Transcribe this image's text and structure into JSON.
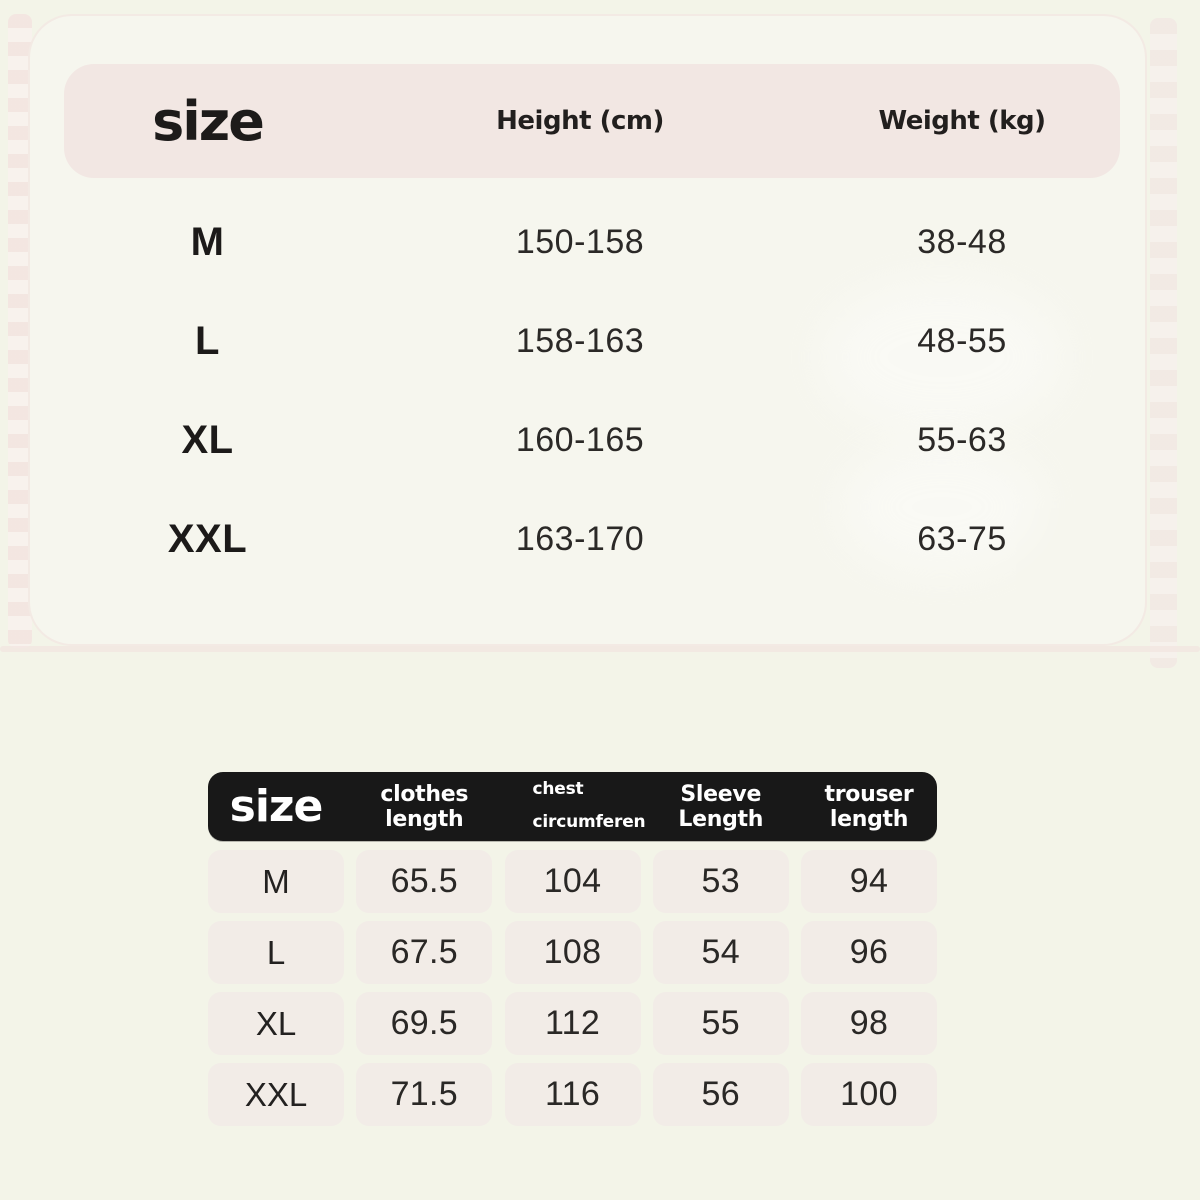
{
  "chart_data": [
    {
      "type": "table",
      "title": "size",
      "columns": [
        "size",
        "Height (cm)",
        "Weight (kg)"
      ],
      "rows": [
        [
          "M",
          "150-158",
          "38-48"
        ],
        [
          "L",
          "158-163",
          "48-55"
        ],
        [
          "XL",
          "160-165",
          "55-63"
        ],
        [
          "XXL",
          "163-170",
          "63-75"
        ]
      ]
    },
    {
      "type": "table",
      "title": "size",
      "columns": [
        "size",
        "clothes length",
        "chest circumferen",
        "Sleeve Length",
        "trouser length"
      ],
      "rows": [
        [
          "M",
          "65.5",
          "104",
          "53",
          "94"
        ],
        [
          "L",
          "67.5",
          "108",
          "54",
          "96"
        ],
        [
          "XL",
          "69.5",
          "112",
          "55",
          "98"
        ],
        [
          "XXL",
          "71.5",
          "116",
          "56",
          "100"
        ]
      ]
    }
  ],
  "size_fit_table": {
    "header": {
      "size": "size",
      "height": "Height (cm)",
      "weight": "Weight (kg)"
    },
    "rows": [
      {
        "size": "M",
        "height": "150-158",
        "weight": "38-48"
      },
      {
        "size": "L",
        "height": "158-163",
        "weight": "48-55"
      },
      {
        "size": "XL",
        "height": "160-165",
        "weight": "55-63"
      },
      {
        "size": "XXL",
        "height": "163-170",
        "weight": "63-75"
      }
    ]
  },
  "measurements_table": {
    "header": {
      "size": "size",
      "clothes_length": [
        "clothes",
        "length"
      ],
      "chest_circumference": [
        "chest",
        "circumferen"
      ],
      "sleeve_length": [
        "Sleeve",
        "Length"
      ],
      "trouser_length": [
        "trouser",
        "length"
      ]
    },
    "rows": [
      [
        "M",
        "65.5",
        "104",
        "53",
        "94"
      ],
      [
        "L",
        "67.5",
        "108",
        "54",
        "96"
      ],
      [
        "XL",
        "69.5",
        "112",
        "55",
        "98"
      ],
      [
        "XXL",
        "71.5",
        "116",
        "56",
        "100"
      ]
    ]
  },
  "colors": {
    "page_bg": "#f3f4e8",
    "card_bg": "#f6f6ee",
    "band_bg": "#f2e7e3",
    "dark_header_bg": "#181818",
    "dark_header_text": "#ffffff",
    "cell_bg": "#f2ece7",
    "text_dark": "#1d1b1a"
  }
}
